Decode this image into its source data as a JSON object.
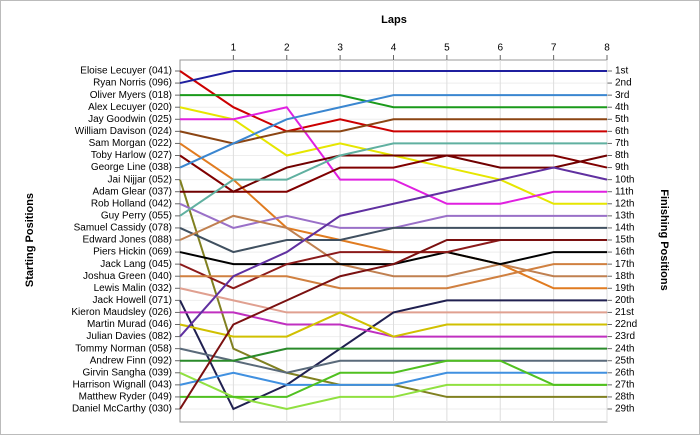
{
  "chart_data": {
    "type": "line",
    "x_label": "Laps",
    "y_label": "Starting Positions",
    "y2_label": "Finishing Positions",
    "x": [
      0,
      1,
      2,
      3,
      4,
      5,
      6,
      7,
      8
    ],
    "xlim": [
      0,
      8
    ],
    "xticks": [
      1,
      2,
      3,
      4,
      5,
      6,
      7,
      8
    ],
    "ylim": [
      1,
      29
    ],
    "y_inverted": true,
    "grid": true,
    "y2lim": [
      1,
      29
    ],
    "y2ticks": [
      {
        "value": 1,
        "label": "1st"
      },
      {
        "value": 2,
        "label": "2nd"
      },
      {
        "value": 3,
        "label": "3rd"
      },
      {
        "value": 4,
        "label": "4th"
      },
      {
        "value": 5,
        "label": "5th"
      },
      {
        "value": 6,
        "label": "6th"
      },
      {
        "value": 7,
        "label": "7th"
      },
      {
        "value": 8,
        "label": "8th"
      },
      {
        "value": 9,
        "label": "9th"
      },
      {
        "value": 10,
        "label": "10th"
      },
      {
        "value": 11,
        "label": "11th"
      },
      {
        "value": 12,
        "label": "12th"
      },
      {
        "value": 13,
        "label": "13th"
      },
      {
        "value": 14,
        "label": "14th"
      },
      {
        "value": 15,
        "label": "15th"
      },
      {
        "value": 16,
        "label": "16th"
      },
      {
        "value": 17,
        "label": "17th"
      },
      {
        "value": 18,
        "label": "18th"
      },
      {
        "value": 19,
        "label": "19th"
      },
      {
        "value": 20,
        "label": "20th"
      },
      {
        "value": 21,
        "label": "21st"
      },
      {
        "value": 22,
        "label": "22nd"
      },
      {
        "value": 23,
        "label": "23rd"
      },
      {
        "value": 24,
        "label": "24th"
      },
      {
        "value": 25,
        "label": "25th"
      },
      {
        "value": 26,
        "label": "26th"
      },
      {
        "value": 27,
        "label": "27th"
      },
      {
        "value": 28,
        "label": "28th"
      },
      {
        "value": 29,
        "label": "29th"
      }
    ],
    "series": [
      {
        "name": "Eloise Lecuyer (041)",
        "color": "#cc0000",
        "values": [
          1,
          4,
          6,
          5,
          6,
          6,
          6,
          6,
          6
        ]
      },
      {
        "name": "Ryan Norris (096)",
        "color": "#1f1f9f",
        "values": [
          2,
          1,
          1,
          1,
          1,
          1,
          1,
          1,
          1
        ]
      },
      {
        "name": "Oliver Myers (018)",
        "color": "#1a9a1a",
        "values": [
          3,
          3,
          3,
          3,
          4,
          4,
          4,
          4,
          4
        ]
      },
      {
        "name": "Alex Lecuyer (020)",
        "color": "#e6e600",
        "values": [
          4,
          5,
          8,
          7,
          8,
          9,
          10,
          12,
          12
        ]
      },
      {
        "name": "Jay Goodwin (025)",
        "color": "#e020e0",
        "values": [
          5,
          5,
          4,
          10,
          10,
          12,
          12,
          11,
          11
        ]
      },
      {
        "name": "William Davison (024)",
        "color": "#8b4513",
        "values": [
          6,
          7,
          6,
          6,
          5,
          5,
          5,
          5,
          5
        ]
      },
      {
        "name": "Sam Morgan (022)",
        "color": "#e07b20",
        "values": [
          7,
          10,
          14,
          15,
          16,
          16,
          17,
          19,
          19
        ]
      },
      {
        "name": "Toby Harlow (027)",
        "color": "#800000",
        "values": [
          8,
          11,
          11,
          9,
          9,
          8,
          8,
          8,
          9
        ]
      },
      {
        "name": "George Line (038)",
        "color": "#3a86d0",
        "values": [
          9,
          7,
          5,
          4,
          3,
          3,
          3,
          3,
          3
        ]
      },
      {
        "name": "Jai Nijjar (052)",
        "color": "#808020",
        "values": [
          10,
          24,
          26,
          27,
          27,
          28,
          28,
          28,
          28
        ]
      },
      {
        "name": "Adam Glear (037)",
        "color": "#700000",
        "values": [
          11,
          11,
          9,
          8,
          8,
          8,
          9,
          9,
          8
        ]
      },
      {
        "name": "Rob Holland (042)",
        "color": "#9a70c8",
        "values": [
          12,
          14,
          13,
          14,
          14,
          13,
          13,
          13,
          13
        ]
      },
      {
        "name": "Guy Perry (055)",
        "color": "#60b0a0",
        "values": [
          13,
          10,
          10,
          8,
          7,
          7,
          7,
          7,
          7
        ]
      },
      {
        "name": "Samuel Cassidy (078)",
        "color": "#405060",
        "values": [
          14,
          16,
          15,
          15,
          14,
          14,
          14,
          14,
          14
        ]
      },
      {
        "name": "Edward Jones (088)",
        "color": "#c08050",
        "values": [
          15,
          13,
          14,
          17,
          18,
          18,
          17,
          18,
          18
        ]
      },
      {
        "name": "Piers Hickin (069)",
        "color": "#000000",
        "values": [
          16,
          17,
          17,
          17,
          17,
          16,
          17,
          16,
          16
        ]
      },
      {
        "name": "Jack Lang (045)",
        "color": "#8b1a1a",
        "values": [
          17,
          19,
          17,
          16,
          16,
          16,
          15,
          15,
          15
        ]
      },
      {
        "name": "Joshua Green (040)",
        "color": "#d08040",
        "values": [
          18,
          18,
          18,
          19,
          19,
          19,
          18,
          17,
          17
        ]
      },
      {
        "name": "Lewis Malin (032)",
        "color": "#e0a090",
        "values": [
          19,
          20,
          21,
          21,
          21,
          21,
          21,
          21,
          21
        ]
      },
      {
        "name": "Jack Howell (071)",
        "color": "#202050",
        "values": [
          20,
          29,
          27,
          24,
          21,
          20,
          20,
          20,
          20
        ]
      },
      {
        "name": "Kieron Maudsley (026)",
        "color": "#c030c0",
        "values": [
          21,
          21,
          22,
          22,
          23,
          23,
          23,
          23,
          23
        ]
      },
      {
        "name": "Martin Murad (046)",
        "color": "#d0c000",
        "values": [
          22,
          23,
          23,
          21,
          23,
          22,
          22,
          22,
          22
        ]
      },
      {
        "name": "Julian Davies (082)",
        "color": "#6030a0",
        "values": [
          23,
          18,
          16,
          13,
          12,
          11,
          10,
          9,
          10
        ]
      },
      {
        "name": "Tommy Norman (058)",
        "color": "#5a6a7a",
        "values": [
          24,
          25,
          26,
          25,
          25,
          25,
          25,
          25,
          25
        ]
      },
      {
        "name": "Andrew Finn (092)",
        "color": "#2a8a2a",
        "values": [
          25,
          25,
          24,
          24,
          24,
          24,
          24,
          24,
          24
        ]
      },
      {
        "name": "Girvin Sangha (039)",
        "color": "#90e040",
        "values": [
          26,
          28,
          29,
          28,
          28,
          27,
          27,
          27,
          27
        ]
      },
      {
        "name": "Harrison Wignall (043)",
        "color": "#4090e0",
        "values": [
          27,
          26,
          27,
          27,
          27,
          26,
          26,
          26,
          26
        ]
      },
      {
        "name": "Matthew Ryder (049)",
        "color": "#50c020",
        "values": [
          28,
          28,
          28,
          26,
          26,
          25,
          25,
          27,
          27
        ]
      },
      {
        "name": "Daniel McCarthy (030)",
        "color": "#7a1010",
        "values": [
          29,
          22,
          20,
          18,
          17,
          15,
          15,
          15,
          15
        ]
      }
    ]
  }
}
